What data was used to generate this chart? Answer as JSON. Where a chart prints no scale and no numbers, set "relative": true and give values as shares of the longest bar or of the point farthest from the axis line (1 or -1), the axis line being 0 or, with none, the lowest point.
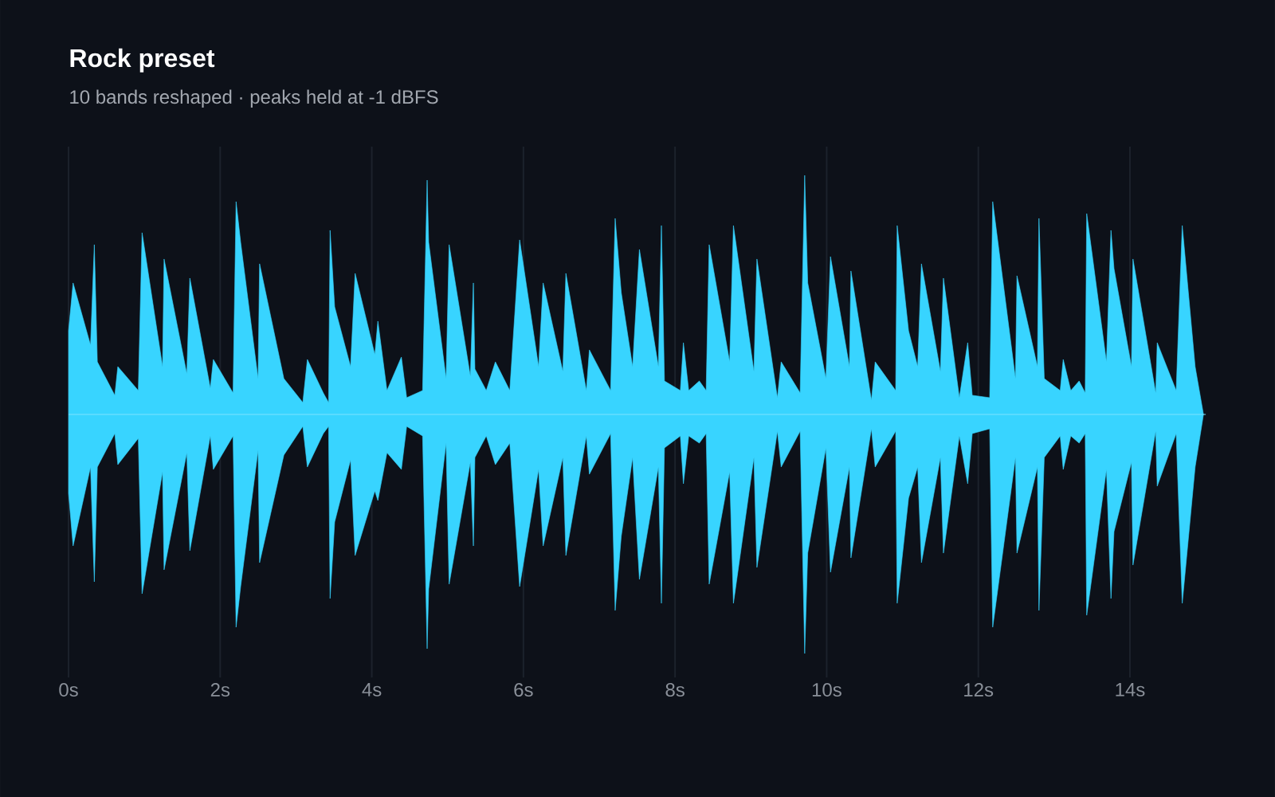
{
  "chart_data": {
    "type": "area",
    "title": "Rock preset",
    "subtitle": "10 bands reshaped · peaks held at -1 dBFS",
    "relative": true,
    "grid": "x",
    "ref_lines": [
      {
        "axis": "y",
        "value": 0,
        "color": "#7fe3ff"
      }
    ],
    "xlim": [
      0,
      15
    ],
    "xticks": [
      {
        "value": 0,
        "label": "0s"
      },
      {
        "value": 2,
        "label": "2s"
      },
      {
        "value": 4,
        "label": "4s"
      },
      {
        "value": 6,
        "label": "6s"
      },
      {
        "value": 8,
        "label": "8s"
      },
      {
        "value": 10,
        "label": "10s"
      },
      {
        "value": 12,
        "label": "12s"
      },
      {
        "value": 14,
        "label": "14s"
      }
    ],
    "x": [
      0,
      0.06,
      0.29,
      0.34,
      0.38,
      0.61,
      0.65,
      0.92,
      0.97,
      1.24,
      1.26,
      1.56,
      1.6,
      1.87,
      1.91,
      2.17,
      2.21,
      2.27,
      2.5,
      2.52,
      2.84,
      3.09,
      3.15,
      3.36,
      3.43,
      3.45,
      3.51,
      3.72,
      3.78,
      4.04,
      4.08,
      4.2,
      4.39,
      4.46,
      4.67,
      4.73,
      4.75,
      4.98,
      5.02,
      5.3,
      5.34,
      5.36,
      5.51,
      5.63,
      5.82,
      5.95,
      6.2,
      6.26,
      6.52,
      6.56,
      6.83,
      6.87,
      7.15,
      7.21,
      7.29,
      7.44,
      7.53,
      7.78,
      7.82,
      7.86,
      8.07,
      8.11,
      8.18,
      8.32,
      8.41,
      8.45,
      8.72,
      8.77,
      9.04,
      9.08,
      9.35,
      9.4,
      9.65,
      9.71,
      9.75,
      9.99,
      10.05,
      10.3,
      10.32,
      10.59,
      10.64,
      10.91,
      10.93,
      11.08,
      11.2,
      11.25,
      11.5,
      11.54,
      11.75,
      11.86,
      11.92,
      12.15,
      12.19,
      12.49,
      12.51,
      12.78,
      12.8,
      12.87,
      13.08,
      13.12,
      13.22,
      13.33,
      13.41,
      13.43,
      13.69,
      13.75,
      13.79,
      14.02,
      14.04,
      14.34,
      14.36,
      14.61,
      14.69,
      14.86,
      14.97
    ],
    "series": [
      {
        "color": "#38d4ff",
        "values": [
          0.35,
          0.55,
          0.29,
          0.71,
          0.22,
          0.08,
          0.2,
          0.1,
          0.76,
          0.2,
          0.65,
          0.17,
          0.57,
          0.11,
          0.23,
          0.09,
          0.89,
          0.72,
          0.15,
          0.63,
          0.15,
          0.05,
          0.23,
          0.09,
          0.05,
          0.77,
          0.45,
          0.2,
          0.59,
          0.25,
          0.39,
          0.1,
          0.24,
          0.07,
          0.1,
          0.98,
          0.72,
          0.15,
          0.71,
          0.16,
          0.55,
          0.19,
          0.1,
          0.22,
          0.1,
          0.73,
          0.2,
          0.55,
          0.18,
          0.59,
          0.1,
          0.27,
          0.1,
          0.82,
          0.51,
          0.2,
          0.69,
          0.2,
          0.79,
          0.14,
          0.1,
          0.3,
          0.1,
          0.14,
          0.1,
          0.71,
          0.22,
          0.79,
          0.18,
          0.65,
          0.07,
          0.22,
          0.09,
          1.0,
          0.55,
          0.15,
          0.66,
          0.2,
          0.6,
          0.06,
          0.22,
          0.1,
          0.79,
          0.35,
          0.2,
          0.63,
          0.18,
          0.57,
          0.07,
          0.3,
          0.08,
          0.07,
          0.89,
          0.15,
          0.58,
          0.2,
          0.82,
          0.15,
          0.1,
          0.23,
          0.1,
          0.14,
          0.09,
          0.84,
          0.22,
          0.77,
          0.61,
          0.2,
          0.65,
          0.09,
          0.3,
          0.1,
          0.79,
          0.2,
          0
        ]
      },
      {
        "color": "#38d4ff",
        "values": [
          -0.33,
          -0.55,
          -0.22,
          -0.7,
          -0.22,
          -0.08,
          -0.21,
          -0.1,
          -0.75,
          -0.24,
          -0.65,
          -0.16,
          -0.57,
          -0.09,
          -0.23,
          -0.09,
          -0.89,
          -0.72,
          -0.15,
          -0.62,
          -0.17,
          -0.05,
          -0.22,
          -0.08,
          -0.05,
          -0.77,
          -0.45,
          -0.19,
          -0.59,
          -0.32,
          -0.36,
          -0.16,
          -0.23,
          -0.05,
          -0.09,
          -0.98,
          -0.73,
          -0.12,
          -0.71,
          -0.2,
          -0.55,
          -0.18,
          -0.09,
          -0.21,
          -0.12,
          -0.72,
          -0.23,
          -0.55,
          -0.18,
          -0.59,
          -0.09,
          -0.25,
          -0.08,
          -0.82,
          -0.51,
          -0.18,
          -0.69,
          -0.22,
          -0.79,
          -0.14,
          -0.09,
          -0.29,
          -0.09,
          -0.12,
          -0.08,
          -0.71,
          -0.24,
          -0.79,
          -0.18,
          -0.64,
          -0.07,
          -0.22,
          -0.07,
          -1.0,
          -0.58,
          -0.14,
          -0.66,
          -0.22,
          -0.6,
          -0.06,
          -0.22,
          -0.07,
          -0.79,
          -0.35,
          -0.22,
          -0.62,
          -0.18,
          -0.58,
          -0.09,
          -0.29,
          -0.08,
          -0.06,
          -0.89,
          -0.18,
          -0.58,
          -0.22,
          -0.82,
          -0.18,
          -0.09,
          -0.23,
          -0.09,
          -0.12,
          -0.08,
          -0.84,
          -0.23,
          -0.77,
          -0.49,
          -0.2,
          -0.63,
          -0.07,
          -0.3,
          -0.08,
          -0.79,
          -0.22,
          0
        ]
      }
    ]
  }
}
